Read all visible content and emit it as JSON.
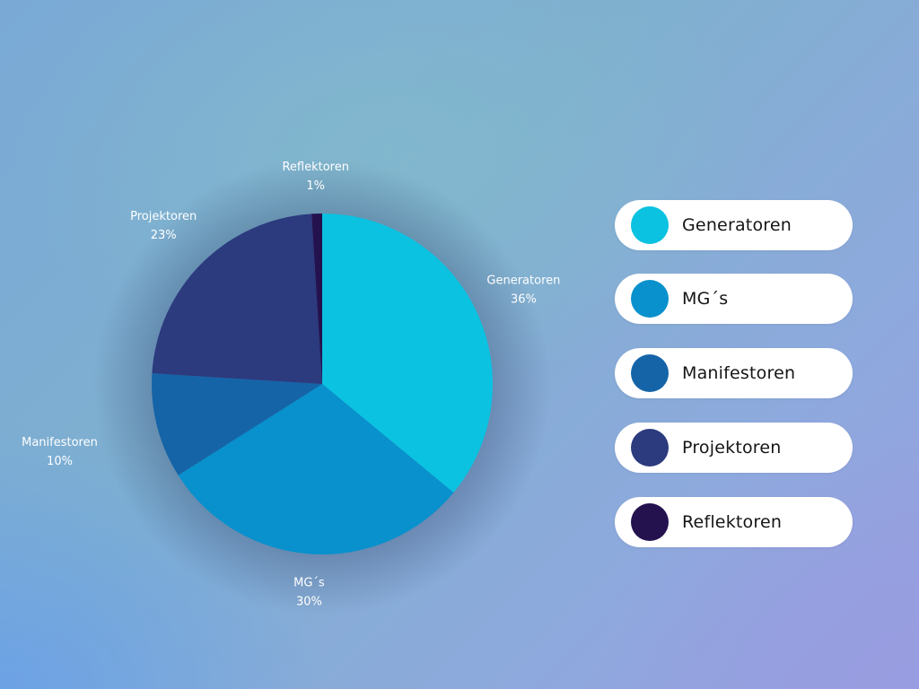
{
  "chart_data": {
    "type": "pie",
    "categories": [
      "Generatoren",
      "MG´s",
      "Manifestoren",
      "Projektoren",
      "Reflektoren"
    ],
    "values": [
      36,
      30,
      10,
      23,
      1
    ],
    "value_labels": [
      "36%",
      "30%",
      "10%",
      "23%",
      "1%"
    ],
    "colors": [
      "#0bc2e1",
      "#0891cc",
      "#1564a8",
      "#2c3a7e",
      "#24124f"
    ],
    "legend_placement": "right",
    "start_angle_deg": 0,
    "direction": "clockwise"
  }
}
